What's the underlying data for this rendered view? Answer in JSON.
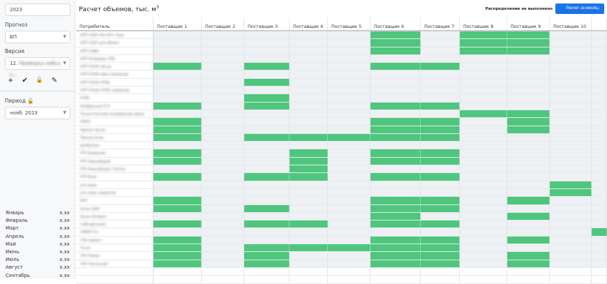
{
  "sidebar": {
    "year": "2023",
    "forecast_label": "Прогноз",
    "forecast_value": "БП",
    "version_label": "Версия",
    "version_prefix": "12.",
    "version_value": "Проверка набса с...",
    "period_label": "Период",
    "period_value": "нояб. 2023",
    "tools": [
      {
        "icon": "plus-icon",
        "glyph": "+"
      },
      {
        "icon": "check-icon",
        "glyph": "✔"
      },
      {
        "icon": "unlock-icon",
        "glyph": "🔓"
      },
      {
        "icon": "edit-icon",
        "glyph": "✎"
      }
    ],
    "months": [
      {
        "name": "Январь",
        "value": "x.xx"
      },
      {
        "name": "Февраль",
        "value": "x.xx"
      },
      {
        "name": "Март",
        "value": "x.xx"
      },
      {
        "name": "Апрель",
        "value": "x.xx"
      },
      {
        "name": "Май",
        "value": "x.xx"
      },
      {
        "name": "Июнь",
        "value": "x.xx"
      },
      {
        "name": "Июль",
        "value": "x.xx"
      },
      {
        "name": "Август",
        "value": "x.xx"
      },
      {
        "name": "Сентябрь",
        "value": "x.xx"
      }
    ]
  },
  "main": {
    "title": "Расчет объемов, тыс. м",
    "title_sup": "3",
    "status": "Распределение не выполнено",
    "calc_button": "Расчет за месяц",
    "calc_icon": "↓"
  },
  "grid": {
    "consumer_header": "Потребитель",
    "suppliers": [
      "Поставщик 1",
      "Поставщик 2",
      "Поставщик 3",
      "Поставщик 4",
      "Поставщик 5",
      "Поставщик 6",
      "Поставщик 7",
      "Поставщик 8",
      "Поставщик 9",
      "Поставщик 10",
      ""
    ],
    "rows": [
      {
        "name": "НПТ 0,8/0 (Пм НП+ Нуд)",
        "g": [
          6,
          8,
          9
        ]
      },
      {
        "name": "НПТ 0,8/0 для объект",
        "g": [
          6,
          8,
          9
        ]
      },
      {
        "name": "НПТ 0,880",
        "g": [
          6,
          8,
          9
        ]
      },
      {
        "name": "НПТ Ячмерово ЛП6",
        "g": []
      },
      {
        "name": "НПТ 0%НО аВ ци",
        "g": [
          1,
          3,
          6,
          7
        ]
      },
      {
        "name": "НПТ 0%НО аВсо наименов",
        "g": []
      },
      {
        "name": "НПТ 0%НО НТЯС",
        "g": [
          3
        ]
      },
      {
        "name": "НПТ 0%НО НТЯС наименов",
        "g": []
      },
      {
        "name": "НТЯС",
        "g": [
          3
        ]
      },
      {
        "name": "Ноябрьская ТГЭ",
        "g": [
          1,
          3,
          6,
          7
        ]
      },
      {
        "name": "Тольяттинский полимерный завод",
        "g": [
          8,
          9
        ]
      },
      {
        "name": "ПНПЗ",
        "g": [
          1,
          6,
          7,
          9
        ]
      },
      {
        "name": "Пропан бутан",
        "g": [
          1,
          6,
          7,
          9
        ]
      },
      {
        "name": "Пропан Блок",
        "g": [
          1,
          3,
          4,
          5,
          6,
          7
        ]
      },
      {
        "name": "разбалено",
        "g": []
      },
      {
        "name": "РТУ Ячмерово",
        "g": [
          1,
          4,
          6,
          7
        ]
      },
      {
        "name": "РТУ Нижнебуряк",
        "g": [
          1,
          4,
          6,
          7
        ]
      },
      {
        "name": "РТУ Нижнебуряк (Тепло)",
        "g": [
          4
        ]
      },
      {
        "name": "РТУ Блок",
        "g": [
          1,
          3,
          4,
          6,
          7
        ]
      },
      {
        "name": "рте маак",
        "g": [
          10
        ]
      },
      {
        "name": "рте маак наименов",
        "g": [
          10
        ]
      },
      {
        "name": "БНР",
        "g": [
          1,
          6,
          7,
          9
        ]
      },
      {
        "name": "Кузан БНБ",
        "g": [
          1,
          3,
          6,
          7
        ]
      },
      {
        "name": "Кузан Флорио",
        "g": [
          6,
          9
        ]
      },
      {
        "name": "Сибнафтехим",
        "g": [
          1,
          3,
          4,
          6,
          7
        ]
      },
      {
        "name": "СИБУР-Ти",
        "g": [
          11
        ]
      },
      {
        "name": "СТК цемент",
        "g": [
          1,
          6,
          7,
          9
        ]
      },
      {
        "name": "Тутас",
        "g": [
          1,
          3,
          4,
          5,
          6,
          7
        ]
      },
      {
        "name": "ЭТУ Ниеда",
        "g": [
          1,
          3,
          6,
          7,
          9
        ]
      },
      {
        "name": "ЭТУ Теплоснаб",
        "g": [
          1,
          3,
          6,
          7,
          9
        ]
      }
    ]
  },
  "colors": {
    "filled": "#4fc67e",
    "empty": "#eef1f4",
    "accent": "#1a73e8"
  }
}
